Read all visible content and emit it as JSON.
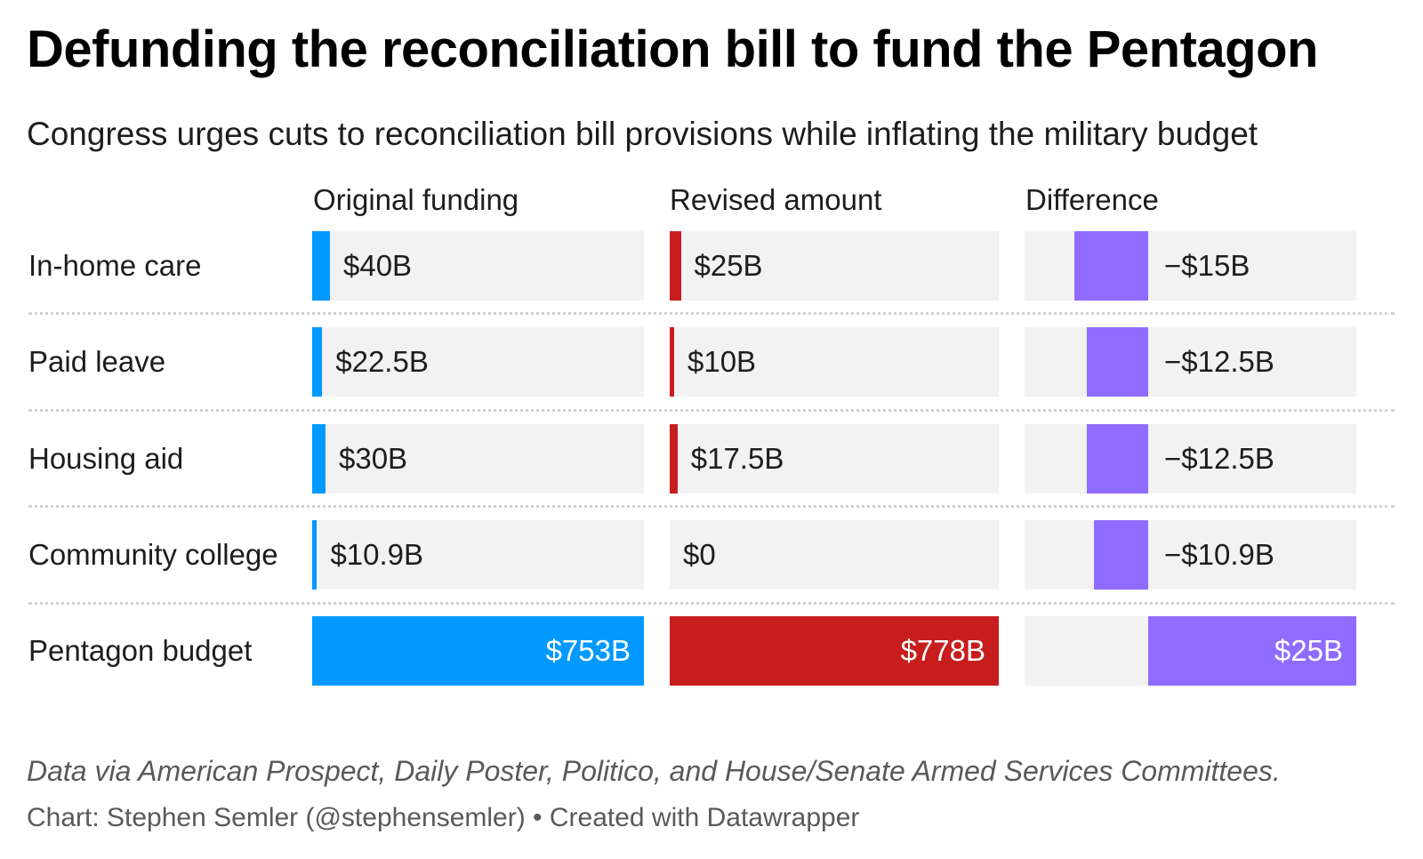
{
  "title": "Defunding the reconciliation bill to fund the Pentagon",
  "subtitle": "Congress urges cuts to reconciliation bill provisions while inflating the military budget",
  "footer": {
    "source": "Data via American Prospect, Daily Poster, Politico, and House/Senate Armed Services Committees.",
    "credit": "Chart: Stephen Semler (@stephensemler) • Created with Datawrapper"
  },
  "colors": {
    "original": "#0099ff",
    "revised": "#c71e1d",
    "difference": "#8f6cff",
    "track": "#f2f2f2"
  },
  "chart_data": {
    "type": "bar",
    "columns": [
      "Original funding",
      "Revised amount",
      "Difference"
    ],
    "categories": [
      "In-home care",
      "Paid leave",
      "Housing aid",
      "Community college",
      "Pentagon budget"
    ],
    "series": [
      {
        "name": "Original funding",
        "values": [
          40,
          22.5,
          30,
          10.9,
          753
        ],
        "labels": [
          "$40B",
          "$22.5B",
          "$30B",
          "$10.9B",
          "$753B"
        ]
      },
      {
        "name": "Revised amount",
        "values": [
          25,
          10,
          17.5,
          0,
          778
        ],
        "labels": [
          "$25B",
          "$10B",
          "$17.5B",
          "$0",
          "$778B"
        ]
      },
      {
        "name": "Difference",
        "values": [
          -15,
          -12.5,
          -12.5,
          -10.9,
          25
        ],
        "labels": [
          "−$15B",
          "−$12.5B",
          "−$12.5B",
          "−$10.9B",
          "$25B"
        ]
      }
    ]
  }
}
